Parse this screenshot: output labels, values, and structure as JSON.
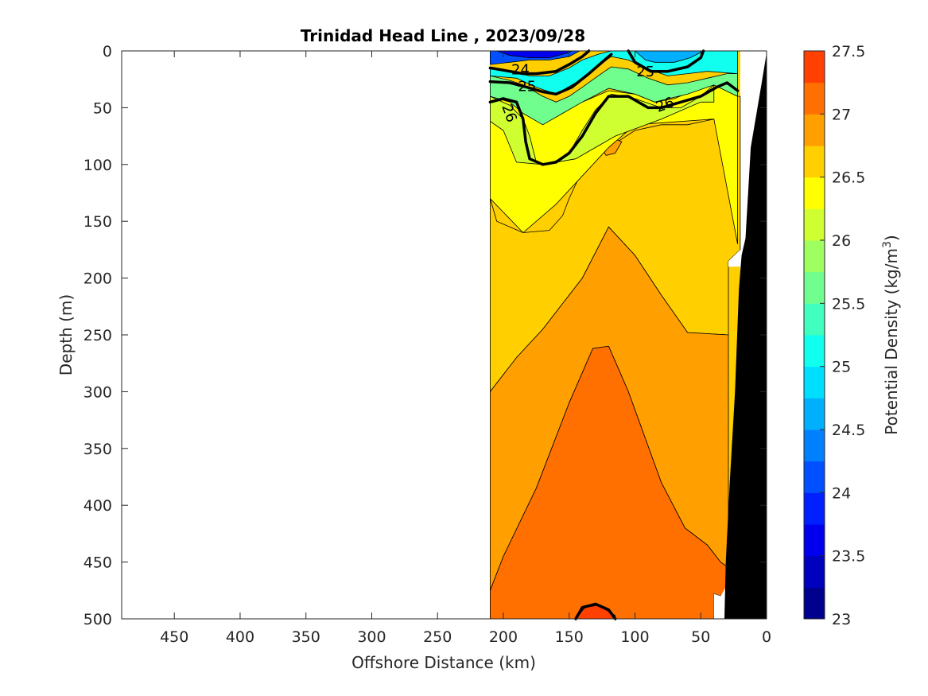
{
  "chart_data": {
    "type": "heatmap",
    "subtype": "filled-contour-section",
    "title": "Trinidad Head Line , 2023/09/28",
    "xlabel": "Offshore Distance (km)",
    "ylabel": "Depth (m)",
    "x_reversed": true,
    "y_reversed": true,
    "xlim": [
      490,
      0
    ],
    "ylim": [
      0,
      500
    ],
    "xticks": [
      450,
      400,
      350,
      300,
      250,
      200,
      150,
      100,
      50,
      0
    ],
    "yticks": [
      0,
      50,
      100,
      150,
      200,
      250,
      300,
      350,
      400,
      450,
      500
    ],
    "colorbar": {
      "label": "Potential Density (kg/m",
      "label_superscript": "3",
      "label_close": ")",
      "range": [
        23,
        27.5
      ],
      "step": 0.25,
      "ticks": [
        23,
        23.5,
        24,
        24.5,
        25,
        25.5,
        26,
        26.5,
        27,
        27.5
      ],
      "colormap": "jet",
      "colors": [
        "#00008f",
        "#0000bf",
        "#0000ef",
        "#0020ff",
        "#0050ff",
        "#0080ff",
        "#00b0ff",
        "#00dfff",
        "#10ffef",
        "#40ffbf",
        "#70ff8f",
        "#9fff60",
        "#cfff30",
        "#ffff00",
        "#ffcf00",
        "#ff9f00",
        "#ff7000",
        "#ff4000",
        "#ff1000",
        "#df0000",
        "#af0000",
        "#800000"
      ]
    },
    "data_extent_km": [
      210,
      0
    ],
    "labeled_contours": [
      24,
      25,
      26
    ],
    "contour_bands": [
      {
        "level": 26.5,
        "points": [
          [
            210,
            130
          ],
          [
            205,
            150
          ],
          [
            185,
            160
          ],
          [
            165,
            158
          ],
          [
            155,
            145
          ],
          [
            150,
            130
          ],
          [
            140,
            105
          ],
          [
            120,
            85
          ],
          [
            100,
            70
          ],
          [
            80,
            65
          ],
          [
            60,
            65
          ],
          [
            40,
            60
          ],
          [
            35,
            55
          ],
          [
            30,
            45
          ],
          [
            22,
            40
          ],
          [
            20,
            40
          ],
          [
            20,
            175
          ],
          [
            29,
            185
          ],
          [
            29,
            250
          ],
          [
            60,
            248
          ],
          [
            80,
            215
          ],
          [
            100,
            180
          ],
          [
            120,
            155
          ],
          [
            140,
            200
          ],
          [
            170,
            245
          ],
          [
            190,
            270
          ],
          [
            210,
            300
          ]
        ]
      },
      {
        "level": 26.75,
        "points": [
          [
            210,
            300
          ],
          [
            190,
            270
          ],
          [
            170,
            245
          ],
          [
            140,
            200
          ],
          [
            120,
            155
          ],
          [
            100,
            180
          ],
          [
            80,
            215
          ],
          [
            60,
            248
          ],
          [
            29,
            250
          ],
          [
            29,
            455
          ],
          [
            35,
            450
          ],
          [
            45,
            435
          ],
          [
            62,
            420
          ],
          [
            80,
            380
          ],
          [
            105,
            300
          ],
          [
            120,
            260
          ],
          [
            132,
            262
          ],
          [
            150,
            310
          ],
          [
            175,
            385
          ],
          [
            200,
            445
          ],
          [
            210,
            475
          ]
        ]
      },
      {
        "level": 27,
        "points": [
          [
            210,
            475
          ],
          [
            200,
            445
          ],
          [
            175,
            385
          ],
          [
            150,
            310
          ],
          [
            132,
            262
          ],
          [
            120,
            260
          ],
          [
            105,
            300
          ],
          [
            80,
            380
          ],
          [
            62,
            420
          ],
          [
            45,
            435
          ],
          [
            35,
            450
          ],
          [
            29,
            455
          ],
          [
            29,
            470
          ],
          [
            35,
            480
          ],
          [
            40,
            478
          ],
          [
            40,
            500
          ],
          [
            210,
            500
          ]
        ]
      },
      {
        "level": 26.75,
        "points": [
          [
            128,
            80
          ],
          [
            120,
            75
          ],
          [
            110,
            80
          ],
          [
            115,
            90
          ],
          [
            122,
            92
          ]
        ]
      },
      {
        "level": 27.25,
        "points": [
          [
            145,
            500
          ],
          [
            138,
            490
          ],
          [
            128,
            488
          ],
          [
            115,
            497
          ],
          [
            115,
            500
          ]
        ]
      }
    ],
    "shallow_bands": [
      {
        "level": 26.25,
        "points": [
          [
            210,
            40
          ],
          [
            195,
            45
          ],
          [
            185,
            50
          ],
          [
            170,
            60
          ],
          [
            155,
            50
          ],
          [
            140,
            45
          ],
          [
            120,
            35
          ],
          [
            100,
            38
          ],
          [
            85,
            45
          ],
          [
            70,
            42
          ],
          [
            50,
            32
          ],
          [
            40,
            30
          ],
          [
            22,
            40
          ],
          [
            22,
            170
          ],
          [
            40,
            60
          ],
          [
            100,
            65
          ],
          [
            120,
            85
          ],
          [
            160,
            135
          ],
          [
            185,
            160
          ],
          [
            210,
            130
          ]
        ]
      },
      {
        "level": 26.0,
        "points": [
          [
            210,
            40
          ],
          [
            195,
            48
          ],
          [
            185,
            60
          ],
          [
            180,
            75
          ],
          [
            175,
            98
          ],
          [
            165,
            100
          ],
          [
            150,
            90
          ],
          [
            140,
            70
          ],
          [
            130,
            52
          ],
          [
            118,
            38
          ],
          [
            100,
            42
          ],
          [
            80,
            50
          ],
          [
            65,
            50
          ],
          [
            50,
            40
          ],
          [
            40,
            30
          ],
          [
            40,
            45
          ],
          [
            50,
            45
          ],
          [
            80,
            60
          ],
          [
            115,
            75
          ],
          [
            145,
            95
          ],
          [
            170,
            100
          ],
          [
            190,
            98
          ],
          [
            200,
            70
          ],
          [
            210,
            62
          ]
        ]
      },
      {
        "level": 25.5,
        "points": [
          [
            210,
            22
          ],
          [
            195,
            26
          ],
          [
            185,
            30
          ],
          [
            170,
            40
          ],
          [
            160,
            45
          ],
          [
            150,
            40
          ],
          [
            140,
            32
          ],
          [
            128,
            22
          ],
          [
            118,
            14
          ],
          [
            105,
            16
          ],
          [
            90,
            24
          ],
          [
            75,
            30
          ],
          [
            60,
            28
          ],
          [
            45,
            24
          ],
          [
            30,
            20
          ],
          [
            22,
            20
          ],
          [
            22,
            40
          ],
          [
            40,
            30
          ],
          [
            60,
            38
          ],
          [
            85,
            45
          ],
          [
            100,
            38
          ],
          [
            120,
            33
          ],
          [
            140,
            45
          ],
          [
            155,
            55
          ],
          [
            170,
            65
          ],
          [
            185,
            55
          ],
          [
            195,
            45
          ],
          [
            210,
            40
          ]
        ]
      },
      {
        "level": 25.0,
        "points": [
          [
            210,
            15
          ],
          [
            195,
            18
          ],
          [
            180,
            22
          ],
          [
            165,
            22
          ],
          [
            150,
            15
          ],
          [
            140,
            8
          ],
          [
            128,
            3
          ],
          [
            118,
            0
          ],
          [
            22,
            0
          ],
          [
            22,
            20
          ],
          [
            45,
            18
          ],
          [
            60,
            20
          ],
          [
            75,
            22
          ],
          [
            90,
            16
          ],
          [
            105,
            8
          ],
          [
            118,
            5
          ],
          [
            130,
            15
          ],
          [
            145,
            28
          ],
          [
            160,
            38
          ],
          [
            175,
            32
          ],
          [
            190,
            24
          ],
          [
            210,
            22
          ]
        ]
      },
      {
        "level": 24.5,
        "points": [
          [
            100,
            0
          ],
          [
            92,
            8
          ],
          [
            85,
            10
          ],
          [
            70,
            10
          ],
          [
            58,
            6
          ],
          [
            48,
            0
          ]
        ]
      },
      {
        "level": 24.0,
        "points": [
          [
            210,
            0
          ],
          [
            210,
            12
          ],
          [
            195,
            10
          ],
          [
            180,
            8
          ],
          [
            165,
            8
          ],
          [
            150,
            5
          ],
          [
            142,
            0
          ]
        ]
      },
      {
        "level": 23.5,
        "points": [
          [
            205,
            0
          ],
          [
            195,
            4
          ],
          [
            180,
            6
          ],
          [
            165,
            6
          ],
          [
            152,
            2
          ],
          [
            148,
            0
          ]
        ]
      }
    ],
    "thick_contours": [
      {
        "level": 24,
        "points": [
          [
            210,
            15
          ],
          [
            195,
            18
          ],
          [
            185,
            20
          ],
          [
            175,
            20
          ],
          [
            160,
            18
          ],
          [
            150,
            12
          ],
          [
            140,
            5
          ],
          [
            135,
            0
          ]
        ]
      },
      {
        "level": 25,
        "points": [
          [
            210,
            27
          ],
          [
            195,
            28
          ],
          [
            182,
            32
          ],
          [
            170,
            36
          ],
          [
            160,
            38
          ],
          [
            148,
            32
          ],
          [
            135,
            20
          ],
          [
            125,
            10
          ],
          [
            118,
            3
          ]
        ]
      },
      {
        "level": 25,
        "points": [
          [
            105,
            0
          ],
          [
            100,
            10
          ],
          [
            88,
            18
          ],
          [
            75,
            18
          ],
          [
            60,
            14
          ],
          [
            50,
            6
          ],
          [
            48,
            0
          ]
        ]
      },
      {
        "level": 26,
        "points": [
          [
            210,
            45
          ],
          [
            200,
            42
          ],
          [
            190,
            45
          ],
          [
            185,
            60
          ],
          [
            183,
            80
          ],
          [
            180,
            95
          ],
          [
            170,
            100
          ],
          [
            160,
            98
          ],
          [
            150,
            90
          ],
          [
            140,
            75
          ],
          [
            130,
            55
          ],
          [
            120,
            40
          ],
          [
            105,
            40
          ],
          [
            90,
            50
          ],
          [
            80,
            50
          ],
          [
            65,
            45
          ],
          [
            50,
            40
          ],
          [
            38,
            32
          ],
          [
            30,
            28
          ],
          [
            22,
            35
          ]
        ]
      },
      {
        "level": 27.25,
        "points": [
          [
            145,
            500
          ],
          [
            140,
            490
          ],
          [
            130,
            487
          ],
          [
            120,
            492
          ],
          [
            115,
            500
          ]
        ]
      }
    ],
    "contour_labels": [
      {
        "text": "24",
        "x": 187,
        "y": 17
      },
      {
        "text": "25",
        "x": 182,
        "y": 32
      },
      {
        "text": "25",
        "x": 92,
        "y": 19
      },
      {
        "text": "26",
        "x": 196,
        "y": 55,
        "rotate": 70
      },
      {
        "text": "26",
        "x": 77,
        "y": 48,
        "rotate": -20
      }
    ],
    "bathymetry": {
      "fill": "#000000",
      "points": [
        [
          0,
          500
        ],
        [
          0,
          2
        ],
        [
          4,
          30
        ],
        [
          12,
          85
        ],
        [
          16,
          165
        ],
        [
          19,
          180
        ],
        [
          21,
          210
        ],
        [
          24,
          300
        ],
        [
          28,
          380
        ],
        [
          31,
          450
        ],
        [
          32,
          500
        ]
      ]
    },
    "no_data_patches": [
      {
        "points": [
          [
            29,
            185
          ],
          [
            20,
            175
          ],
          [
            20,
            190
          ],
          [
            29,
            190
          ]
        ]
      },
      {
        "points": [
          [
            40,
            478
          ],
          [
            35,
            480
          ],
          [
            30,
            470
          ],
          [
            30,
            500
          ],
          [
            40,
            500
          ]
        ]
      }
    ]
  }
}
